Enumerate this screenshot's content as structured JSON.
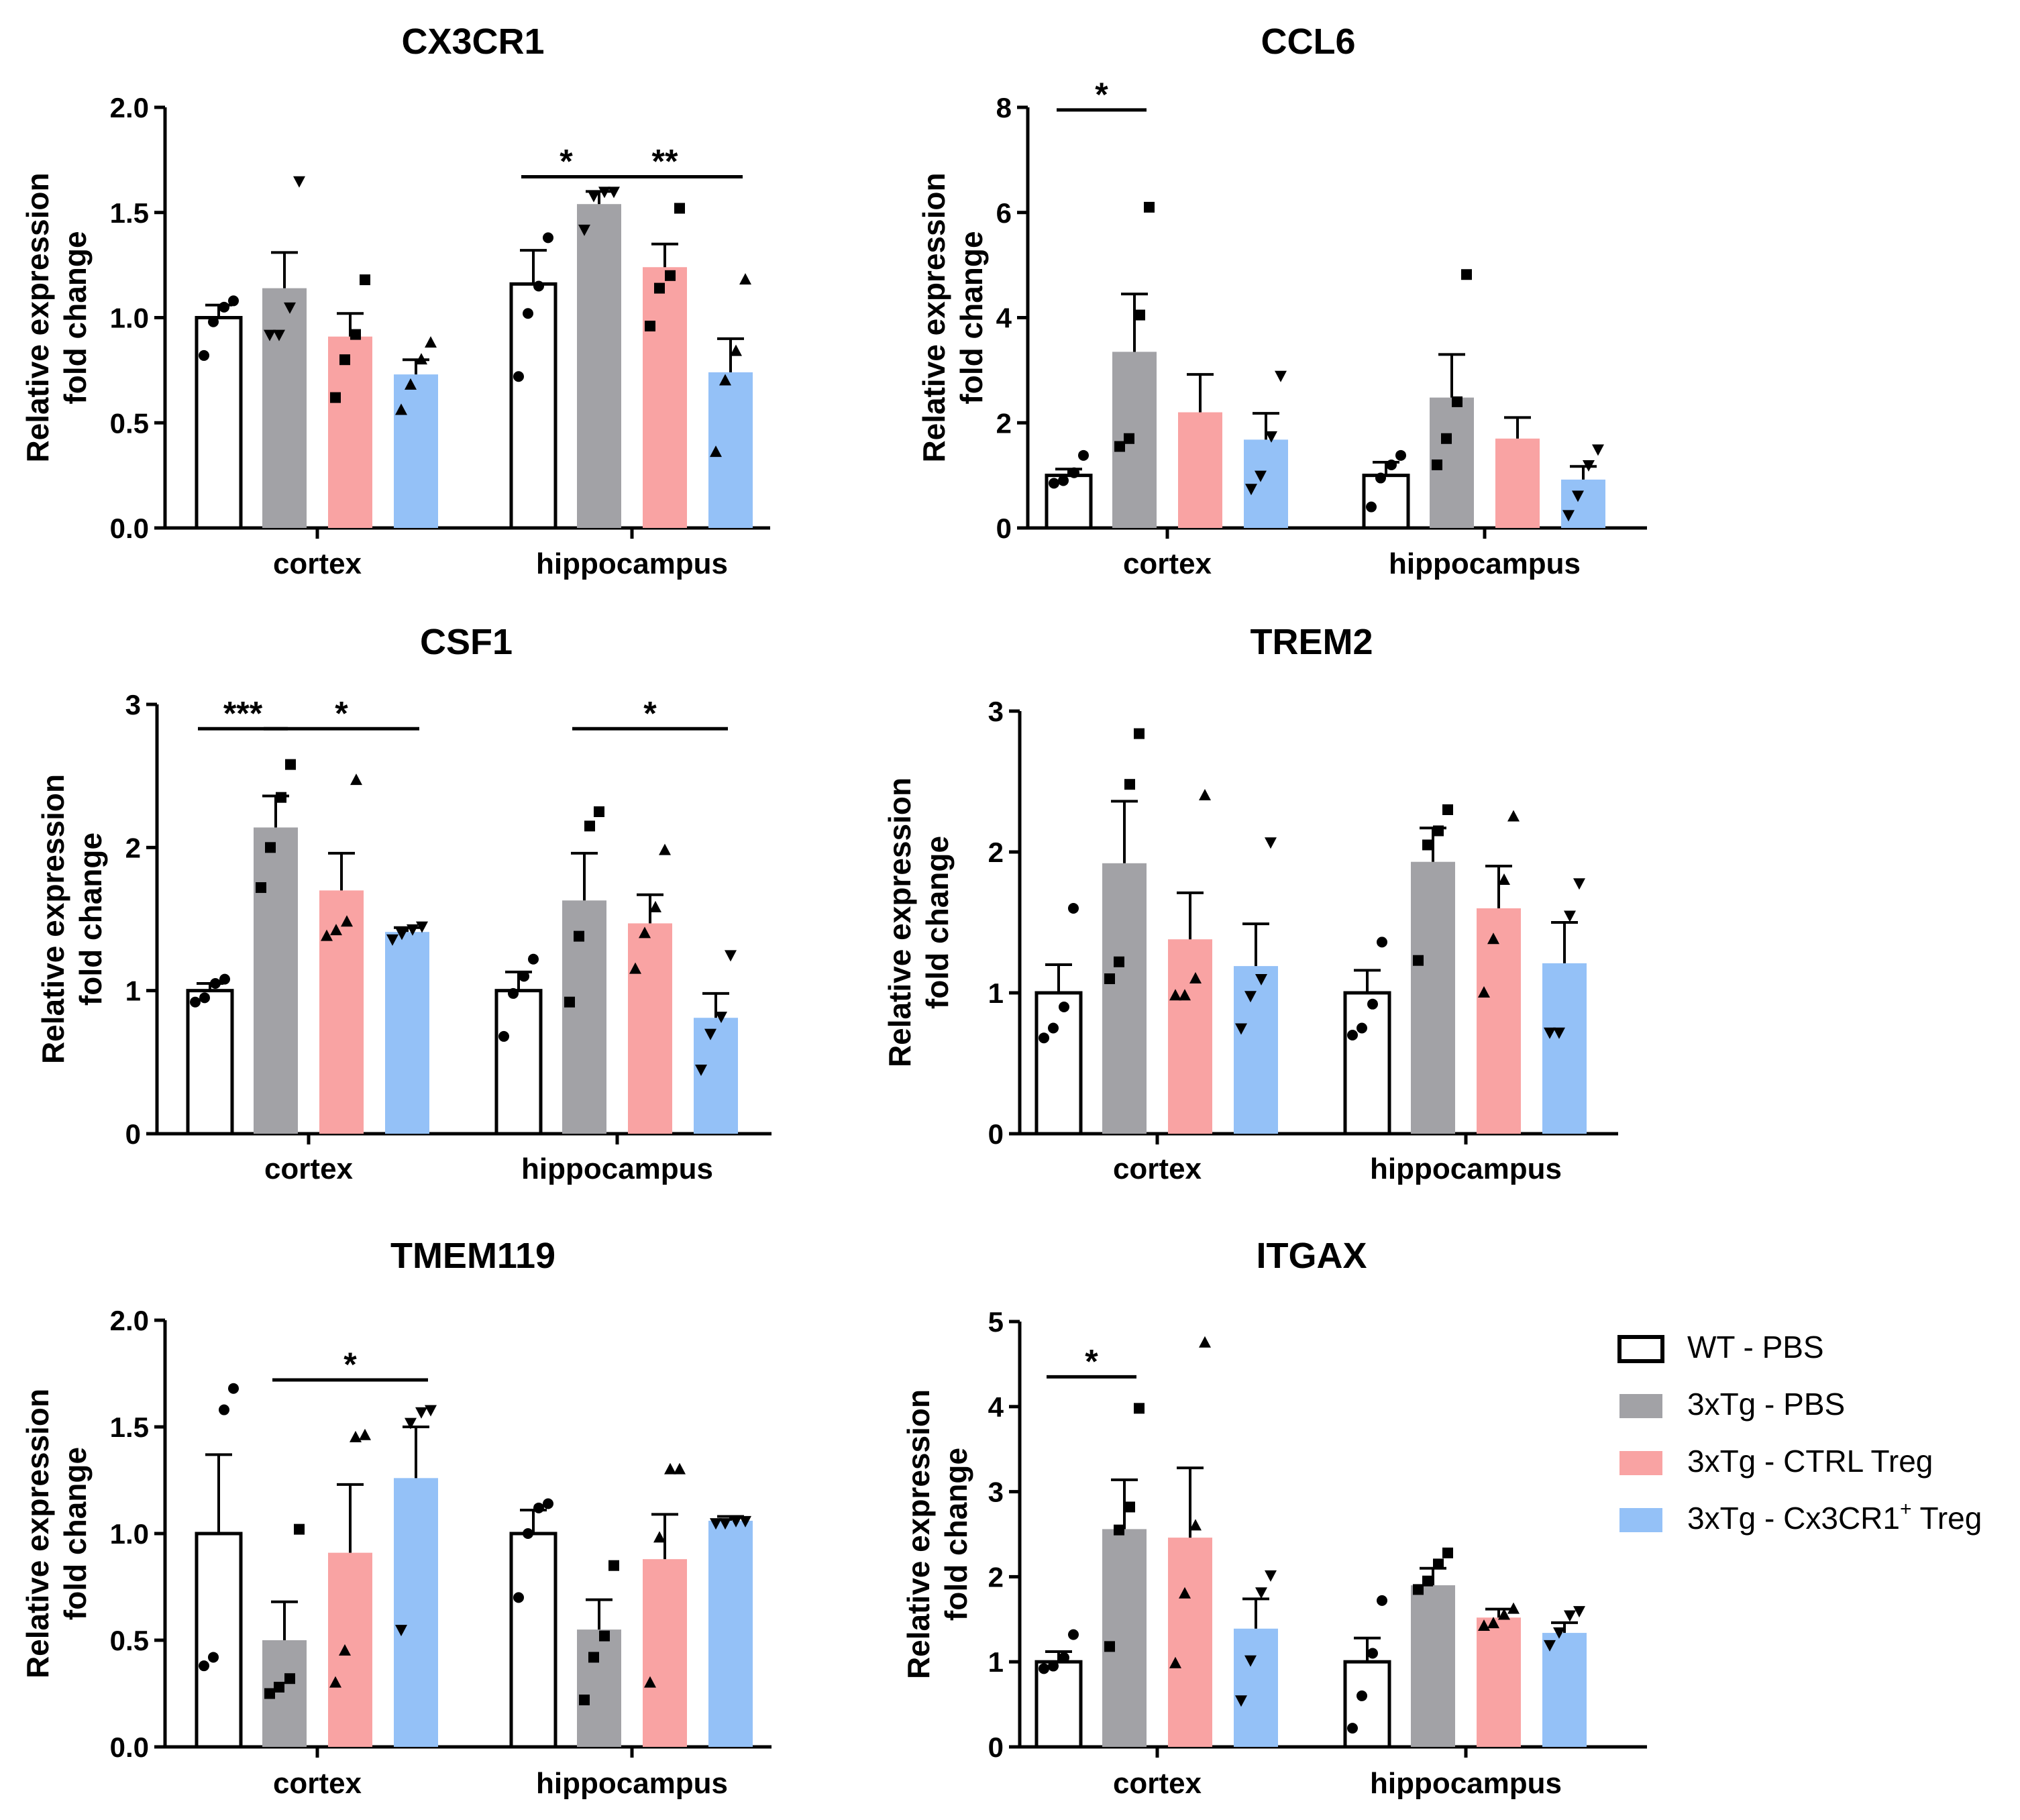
{
  "legend": {
    "items": [
      {
        "label": "WT - PBS",
        "color": "#ffffff"
      },
      {
        "label": "3xTg - PBS",
        "color": "#a2a2a6"
      },
      {
        "label": "3xTg - CTRL Treg",
        "color": "#f9a3a3"
      },
      {
        "label": "3xTg - Cx3CR1",
        "sup": "+",
        "suffix": " Treg",
        "color": "#94c1f7"
      }
    ]
  },
  "chart_data": [
    {
      "type": "bar",
      "title": "CX3CR1",
      "ylabel": [
        "Relative expression",
        "fold change"
      ],
      "categories": [
        "cortex",
        "hippocampus"
      ],
      "ylim": [
        0,
        2.0
      ],
      "yticks": [
        "0.0",
        "0.5",
        "1.0",
        "1.5",
        "2.0"
      ],
      "series": [
        {
          "name": "WT - PBS",
          "values": [
            1.0,
            1.16
          ],
          "sem": [
            0.06,
            0.16
          ],
          "marker": "circle",
          "points": [
            [
              0.82,
              0.98,
              1.05,
              1.08
            ],
            [
              0.72,
              1.02,
              1.15,
              1.38
            ]
          ]
        },
        {
          "name": "3xTg - PBS",
          "values": [
            1.14,
            1.54
          ],
          "sem": [
            0.17,
            0.06
          ],
          "marker": "tri-down",
          "points": [
            [
              0.92,
              0.92,
              1.05,
              1.65
            ],
            [
              1.42,
              1.58,
              1.6,
              1.6
            ]
          ]
        },
        {
          "name": "3xTg - CTRL Treg",
          "values": [
            0.91,
            1.24
          ],
          "sem": [
            0.11,
            0.11
          ],
          "marker": "square",
          "points": [
            [
              0.62,
              0.8,
              0.92,
              1.18
            ],
            [
              0.96,
              1.14,
              1.2,
              1.52
            ]
          ]
        },
        {
          "name": "3xTg - Cx3CR1+ Treg",
          "values": [
            0.73,
            0.74
          ],
          "sem": [
            0.07,
            0.16
          ],
          "marker": "tri-up",
          "points": [
            [
              0.56,
              0.68,
              0.8,
              0.88
            ],
            [
              0.36,
              0.7,
              0.84,
              1.18
            ]
          ]
        }
      ],
      "significance": [
        {
          "cat": 1,
          "from": 0,
          "to": 1,
          "y": 1.67,
          "label": "*"
        },
        {
          "cat": 1,
          "from": 1,
          "to": 3,
          "y": 1.67,
          "label": "**"
        }
      ]
    },
    {
      "type": "bar",
      "title": "CCL6",
      "ylabel": [
        "Relative expression",
        "fold change"
      ],
      "categories": [
        "cortex",
        "hippocampus"
      ],
      "ylim": [
        0,
        8
      ],
      "yticks": [
        "0",
        "2",
        "4",
        "6",
        "8"
      ],
      "series": [
        {
          "name": "WT - PBS",
          "values": [
            1.0,
            1.0
          ],
          "sem": [
            0.12,
            0.25
          ],
          "marker": "circle",
          "points": [
            [
              0.85,
              0.9,
              1.05,
              1.38
            ],
            [
              0.4,
              0.95,
              1.2,
              1.38
            ]
          ]
        },
        {
          "name": "3xTg - PBS",
          "values": [
            3.35,
            2.48
          ],
          "sem": [
            1.1,
            0.82
          ],
          "marker": "square",
          "points": [
            [
              1.55,
              1.7,
              4.05,
              6.1
            ],
            [
              1.2,
              1.7,
              2.4,
              4.82
            ]
          ]
        },
        {
          "name": "3xTg - CTRL Treg",
          "values": [
            2.2,
            1.7
          ],
          "sem": [
            0.72,
            0.4
          ],
          "marker": "tri-up",
          "points": []
        },
        {
          "name": "3xTg - Cx3CR1+ Treg",
          "values": [
            1.68,
            0.92
          ],
          "sem": [
            0.5,
            0.25
          ],
          "marker": "tri-down",
          "points": [
            [
              0.75,
              1.0,
              1.75,
              2.9
            ],
            [
              0.25,
              0.62,
              1.2,
              1.5
            ]
          ]
        }
      ],
      "significance": [
        {
          "cat": 0,
          "from": 0,
          "to": 1,
          "y": 7.95,
          "label": "*"
        }
      ]
    },
    {
      "type": "bar",
      "title": "CSF1",
      "ylabel": [
        "Relative expression",
        "fold change"
      ],
      "categories": [
        "cortex",
        "hippocampus"
      ],
      "ylim": [
        0,
        3
      ],
      "yticks": [
        "0",
        "1",
        "2",
        "3"
      ],
      "series": [
        {
          "name": "WT - PBS",
          "values": [
            1.0,
            1.0
          ],
          "sem": [
            0.05,
            0.13
          ],
          "marker": "circle",
          "points": [
            [
              0.92,
              0.95,
              1.05,
              1.08
            ],
            [
              0.68,
              0.98,
              1.1,
              1.22
            ]
          ]
        },
        {
          "name": "3xTg - PBS",
          "values": [
            2.14,
            1.63
          ],
          "sem": [
            0.22,
            0.33
          ],
          "marker": "square",
          "points": [
            [
              1.72,
              2.0,
              2.35,
              2.58
            ],
            [
              0.92,
              1.38,
              2.15,
              2.25
            ]
          ]
        },
        {
          "name": "3xTg - CTRL Treg",
          "values": [
            1.7,
            1.47
          ],
          "sem": [
            0.26,
            0.2
          ],
          "marker": "tri-up",
          "points": [
            [
              1.38,
              1.42,
              1.48,
              2.47
            ],
            [
              1.15,
              1.4,
              1.58,
              1.98
            ]
          ]
        },
        {
          "name": "3xTg - Cx3CR1+ Treg",
          "values": [
            1.41,
            0.81
          ],
          "sem": [
            0.03,
            0.17
          ],
          "marker": "tri-down",
          "points": [
            [
              1.36,
              1.4,
              1.43,
              1.45
            ],
            [
              0.45,
              0.7,
              0.82,
              1.25
            ]
          ]
        }
      ],
      "significance": [
        {
          "cat": 0,
          "from": 0,
          "to": 1,
          "y": 2.83,
          "label": "***"
        },
        {
          "cat": 0,
          "from": 1,
          "to": 3,
          "y": 2.83,
          "label": "*"
        },
        {
          "cat": 1,
          "from": 1,
          "to": 3,
          "y": 2.83,
          "label": "*"
        }
      ]
    },
    {
      "type": "bar",
      "title": "TREM2",
      "ylabel": [
        "Relative expression",
        "fold change"
      ],
      "categories": [
        "cortex",
        "hippocampus"
      ],
      "ylim": [
        0,
        3
      ],
      "yticks": [
        "0",
        "1",
        "2",
        "3"
      ],
      "series": [
        {
          "name": "WT - PBS",
          "values": [
            1.0,
            1.0
          ],
          "sem": [
            0.2,
            0.16
          ],
          "marker": "circle",
          "points": [
            [
              0.68,
              0.75,
              0.9,
              1.6
            ],
            [
              0.7,
              0.75,
              0.92,
              1.36
            ]
          ]
        },
        {
          "name": "3xTg - PBS",
          "values": [
            1.92,
            1.93
          ],
          "sem": [
            0.44,
            0.24
          ],
          "marker": "square",
          "points": [
            [
              1.1,
              1.22,
              2.48,
              2.84
            ],
            [
              1.23,
              2.05,
              2.15,
              2.3
            ]
          ]
        },
        {
          "name": "3xTg - CTRL Treg",
          "values": [
            1.38,
            1.6
          ],
          "sem": [
            0.33,
            0.3
          ],
          "marker": "tri-up",
          "points": [
            [
              0.98,
              0.98,
              1.1,
              2.4
            ],
            [
              1.0,
              1.38,
              1.8,
              2.25
            ]
          ]
        },
        {
          "name": "3xTg - Cx3CR1+ Treg",
          "values": [
            1.19,
            1.21
          ],
          "sem": [
            0.3,
            0.29
          ],
          "marker": "tri-down",
          "points": [
            [
              0.75,
              0.98,
              1.1,
              2.07
            ],
            [
              0.72,
              0.72,
              1.55,
              1.78
            ]
          ]
        }
      ],
      "significance": []
    },
    {
      "type": "bar",
      "title": "TMEM119",
      "ylabel": [
        "Relative expression",
        "fold change"
      ],
      "categories": [
        "cortex",
        "hippocampus"
      ],
      "ylim": [
        0,
        2.0
      ],
      "yticks": [
        "0.0",
        "0.5",
        "1.0",
        "1.5",
        "2.0"
      ],
      "series": [
        {
          "name": "WT - PBS",
          "values": [
            1.0,
            1.0
          ],
          "sem": [
            0.37,
            0.11
          ],
          "marker": "circle",
          "points": [
            [
              0.38,
              0.42,
              1.58,
              1.68
            ],
            [
              0.7,
              1.0,
              1.12,
              1.14
            ]
          ]
        },
        {
          "name": "3xTg - PBS",
          "values": [
            0.5,
            0.55
          ],
          "sem": [
            0.18,
            0.14
          ],
          "marker": "square",
          "points": [
            [
              0.25,
              0.28,
              0.32,
              1.02
            ],
            [
              0.22,
              0.42,
              0.52,
              0.85
            ]
          ]
        },
        {
          "name": "3xTg - CTRL Treg",
          "values": [
            0.91,
            0.88
          ],
          "sem": [
            0.32,
            0.21
          ],
          "marker": "tri-up",
          "points": [
            [
              0.3,
              0.45,
              1.45,
              1.46
            ],
            [
              0.3,
              0.98,
              1.3,
              1.3
            ]
          ]
        },
        {
          "name": "3xTg - Cx3CR1+ Treg",
          "values": [
            1.26,
            1.06
          ],
          "sem": [
            0.24,
            0.02
          ],
          "marker": "tri-down",
          "points": [
            [
              0.55,
              1.52,
              1.57,
              1.58
            ],
            [
              1.05,
              1.05,
              1.06,
              1.06
            ]
          ]
        }
      ],
      "significance": [
        {
          "cat": 0,
          "from": 1,
          "to": 3,
          "y": 1.72,
          "label": "*"
        }
      ]
    },
    {
      "type": "bar",
      "title": "ITGAX",
      "ylabel": [
        "Relative expression",
        "fold change"
      ],
      "categories": [
        "cortex",
        "hippocampus"
      ],
      "ylim": [
        0,
        5
      ],
      "yticks": [
        "0",
        "1",
        "2",
        "3",
        "4",
        "5"
      ],
      "series": [
        {
          "name": "WT - PBS",
          "values": [
            1.0,
            1.0
          ],
          "sem": [
            0.12,
            0.28
          ],
          "marker": "circle",
          "points": [
            [
              0.92,
              0.95,
              1.05,
              1.32
            ],
            [
              0.22,
              0.6,
              1.1,
              1.72
            ]
          ]
        },
        {
          "name": "3xTg - PBS",
          "values": [
            2.56,
            1.9
          ],
          "sem": [
            0.58,
            0.2
          ],
          "marker": "square",
          "points": [
            [
              1.18,
              2.55,
              2.82,
              3.98
            ],
            [
              1.85,
              1.95,
              2.15,
              2.28
            ]
          ]
        },
        {
          "name": "3xTg - CTRL Treg",
          "values": [
            2.46,
            1.52
          ],
          "sem": [
            0.82,
            0.1
          ],
          "marker": "tri-up",
          "points": [
            [
              0.98,
              1.8,
              2.6,
              4.75
            ],
            [
              1.42,
              1.45,
              1.55,
              1.62
            ]
          ]
        },
        {
          "name": "3xTg - Cx3CR1+ Treg",
          "values": [
            1.39,
            1.34
          ],
          "sem": [
            0.35,
            0.12
          ],
          "marker": "tri-down",
          "points": [
            [
              0.55,
              1.02,
              1.82,
              2.02
            ],
            [
              1.2,
              1.35,
              1.55,
              1.6
            ]
          ]
        }
      ],
      "significance": [
        {
          "cat": 0,
          "from": 0,
          "to": 1,
          "y": 4.35,
          "label": "*"
        }
      ]
    }
  ]
}
